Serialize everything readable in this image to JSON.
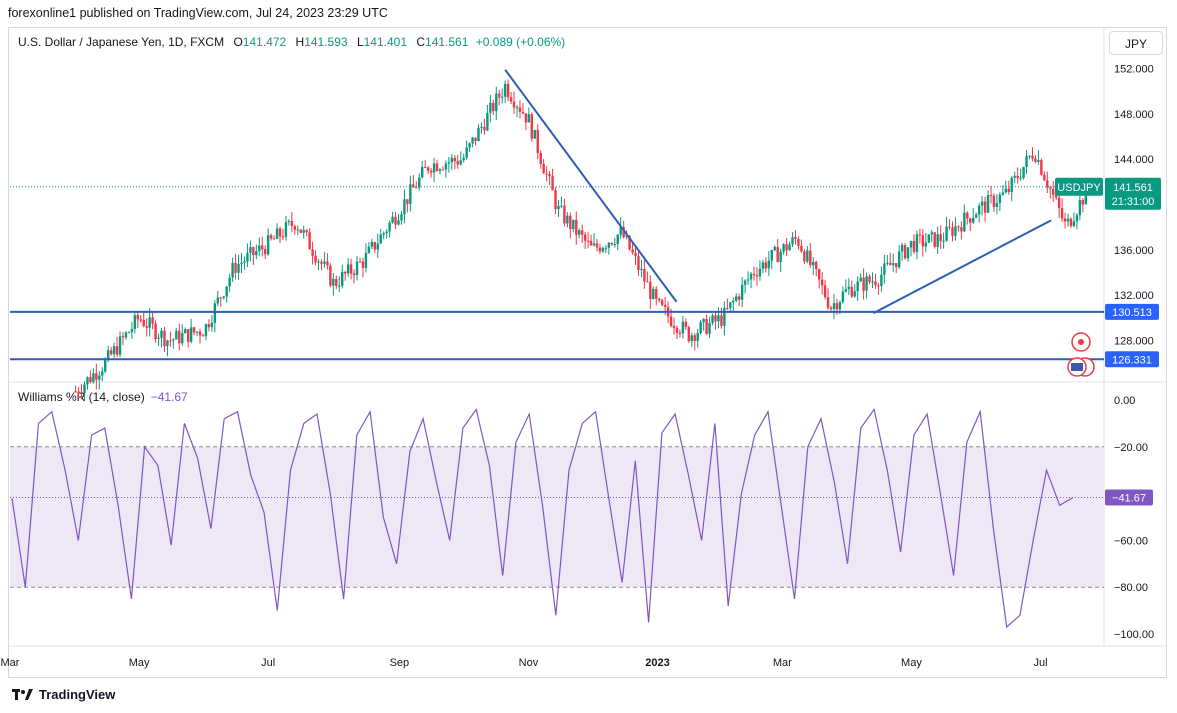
{
  "header": {
    "published": "forexonline1 published on TradingView.com, Jul 24, 2023 23:29 UTC"
  },
  "legend": {
    "symbol": "U.S. Dollar / Japanese Yen, 1D, FXCM",
    "o_label": "O",
    "o": "141.472",
    "h_label": "H",
    "h": "141.593",
    "l_label": "L",
    "l": "141.401",
    "c_label": "C",
    "c": "141.561",
    "change": "+0.089 (+0.06%)"
  },
  "currency_button": "JPY",
  "williams": {
    "label": "Williams %R (14, close)",
    "value": "−41.67"
  },
  "footer": {
    "brand": "TradingView"
  },
  "colors": {
    "up": "#089981",
    "down": "#f23645",
    "line": "#2962ff",
    "trendline": "#2b5fb5",
    "wpr": "#7e57c2",
    "band": "#ede7f6"
  },
  "chart_data": [
    {
      "type": "candlestick",
      "symbol_tag": "USDJPY",
      "price_label": "141.561",
      "countdown": "21:31:00",
      "ylim": [
        124.5,
        153.2
      ],
      "y_ticks": [
        "152.000",
        "148.000",
        "144.000",
        "136.000",
        "132.000",
        "128.000"
      ],
      "x_ticks": [
        "Mar",
        "May",
        "Jul",
        "Sep",
        "Nov",
        "2023",
        "Mar",
        "May",
        "Jul"
      ],
      "last_close": 141.561,
      "horizontal_lines": [
        {
          "value": 130.513,
          "label": "130.513"
        },
        {
          "value": 126.331,
          "label": "126.331"
        }
      ],
      "trendlines": [
        {
          "from": [
            "2022-10-21",
            151.9
          ],
          "to": [
            "2023-01-10",
            131.4
          ]
        },
        {
          "from": [
            "2023-04-13",
            130.4
          ],
          "to": [
            "2023-07-06",
            138.6
          ]
        }
      ],
      "series": [
        {
          "x": [
            "2022-04-01",
            "2022-04-15",
            "2022-05-01",
            "2022-05-15",
            "2022-06-01",
            "2022-06-15",
            "2022-07-01",
            "2022-07-14",
            "2022-08-01",
            "2022-08-15",
            "2022-09-01",
            "2022-09-15",
            "2022-10-01",
            "2022-10-21",
            "2022-11-01",
            "2022-11-15",
            "2022-12-01",
            "2022-12-15",
            "2023-01-01",
            "2023-01-16",
            "2023-02-01",
            "2023-02-15",
            "2023-03-08",
            "2023-03-24",
            "2023-04-01",
            "2023-04-15",
            "2023-05-01",
            "2023-05-15",
            "2023-06-01",
            "2023-06-15",
            "2023-06-28",
            "2023-07-13",
            "2023-07-24"
          ],
          "close": [
            123.5,
            126.0,
            130.0,
            128.0,
            129.0,
            134.5,
            136.5,
            138.5,
            133.0,
            135.0,
            139.5,
            143.5,
            144.0,
            150.5,
            147.5,
            139.5,
            136.0,
            137.5,
            131.0,
            128.5,
            130.0,
            134.0,
            137.0,
            131.0,
            132.5,
            133.5,
            136.5,
            137.0,
            139.5,
            141.0,
            144.8,
            138.0,
            141.56
          ]
        }
      ]
    },
    {
      "type": "line",
      "name": "Williams %R (14, close)",
      "ylim": [
        -100,
        0
      ],
      "y_ticks": [
        "0.00",
        "−20.00",
        "−60.00",
        "−80.00",
        "−100.00"
      ],
      "bands": [
        -20,
        -80
      ],
      "last": -41.67,
      "y": [
        -42,
        -80,
        -10,
        -5,
        -30,
        -60,
        -15,
        -12,
        -45,
        -85,
        -20,
        -28,
        -62,
        -10,
        -25,
        -55,
        -8,
        -5,
        -32,
        -48,
        -90,
        -30,
        -10,
        -6,
        -40,
        -85,
        -15,
        -5,
        -50,
        -70,
        -22,
        -8,
        -35,
        -60,
        -12,
        -4,
        -28,
        -75,
        -18,
        -6,
        -45,
        -92,
        -30,
        -10,
        -5,
        -42,
        -78,
        -26,
        -95,
        -14,
        -6,
        -32,
        -60,
        -10,
        -88,
        -40,
        -15,
        -5,
        -45,
        -85,
        -20,
        -8,
        -35,
        -70,
        -12,
        -4,
        -30,
        -65,
        -15,
        -6,
        -40,
        -75,
        -18,
        -5,
        -55,
        -97,
        -92,
        -60,
        -30,
        -45,
        -41.67
      ]
    }
  ]
}
